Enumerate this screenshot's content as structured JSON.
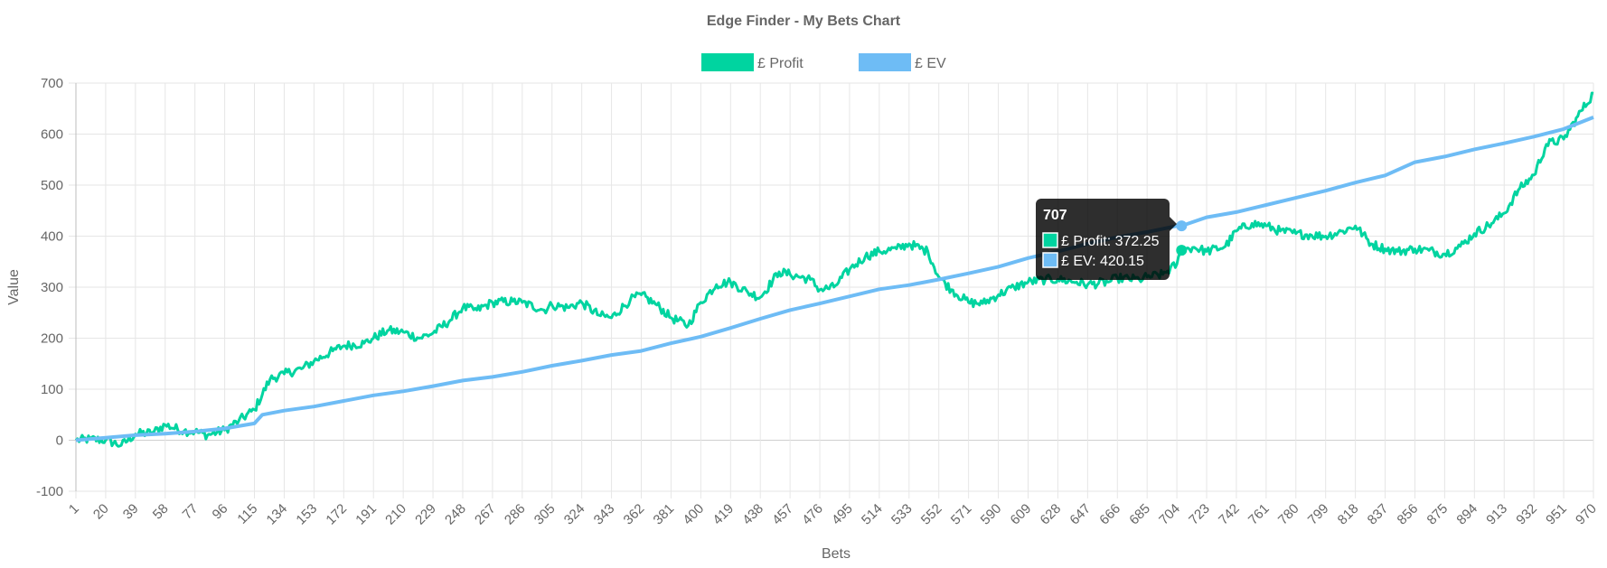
{
  "chart_data": {
    "type": "line",
    "title": "Edge Finder - My Bets Chart",
    "xlabel": "Bets",
    "ylabel": "Value",
    "ylim": [
      -100,
      700
    ],
    "yticks": [
      700,
      600,
      500,
      400,
      300,
      200,
      100,
      0,
      -100
    ],
    "xlim": [
      1,
      970
    ],
    "xticks": [
      1,
      20,
      39,
      58,
      77,
      96,
      115,
      134,
      153,
      172,
      191,
      210,
      229,
      248,
      267,
      286,
      305,
      324,
      343,
      362,
      381,
      400,
      419,
      438,
      457,
      476,
      495,
      514,
      533,
      552,
      571,
      590,
      609,
      628,
      647,
      666,
      685,
      704,
      723,
      742,
      761,
      780,
      799,
      818,
      837,
      856,
      875,
      894,
      913,
      932,
      951,
      970
    ],
    "grid": true,
    "legend": "top-center",
    "series": [
      {
        "name": "£ Profit",
        "color": "#00d4a0",
        "points": [
          [
            1,
            0
          ],
          [
            10,
            2
          ],
          [
            20,
            0
          ],
          [
            30,
            -10
          ],
          [
            39,
            12
          ],
          [
            50,
            15
          ],
          [
            58,
            30
          ],
          [
            70,
            18
          ],
          [
            77,
            17
          ],
          [
            85,
            10
          ],
          [
            96,
            20
          ],
          [
            105,
            38
          ],
          [
            115,
            60
          ],
          [
            125,
            120
          ],
          [
            134,
            130
          ],
          [
            145,
            140
          ],
          [
            153,
            155
          ],
          [
            165,
            175
          ],
          [
            172,
            185
          ],
          [
            185,
            190
          ],
          [
            191,
            200
          ],
          [
            200,
            215
          ],
          [
            210,
            212
          ],
          [
            220,
            200
          ],
          [
            229,
            210
          ],
          [
            240,
            235
          ],
          [
            248,
            260
          ],
          [
            257,
            255
          ],
          [
            267,
            270
          ],
          [
            280,
            272
          ],
          [
            286,
            270
          ],
          [
            300,
            255
          ],
          [
            305,
            265
          ],
          [
            315,
            260
          ],
          [
            324,
            270
          ],
          [
            335,
            245
          ],
          [
            343,
            240
          ],
          [
            355,
            275
          ],
          [
            362,
            285
          ],
          [
            372,
            265
          ],
          [
            381,
            240
          ],
          [
            392,
            225
          ],
          [
            400,
            270
          ],
          [
            410,
            305
          ],
          [
            419,
            310
          ],
          [
            430,
            290
          ],
          [
            438,
            280
          ],
          [
            450,
            330
          ],
          [
            457,
            325
          ],
          [
            470,
            315
          ],
          [
            476,
            295
          ],
          [
            485,
            300
          ],
          [
            495,
            335
          ],
          [
            505,
            360
          ],
          [
            514,
            370
          ],
          [
            525,
            375
          ],
          [
            533,
            385
          ],
          [
            545,
            370
          ],
          [
            552,
            320
          ],
          [
            560,
            295
          ],
          [
            571,
            270
          ],
          [
            580,
            268
          ],
          [
            590,
            285
          ],
          [
            600,
            300
          ],
          [
            609,
            310
          ],
          [
            620,
            315
          ],
          [
            628,
            315
          ],
          [
            640,
            310
          ],
          [
            647,
            305
          ],
          [
            660,
            310
          ],
          [
            666,
            318
          ],
          [
            680,
            315
          ],
          [
            685,
            320
          ],
          [
            695,
            325
          ],
          [
            704,
            345
          ],
          [
            707,
            372.25
          ],
          [
            715,
            378
          ],
          [
            723,
            370
          ],
          [
            735,
            380
          ],
          [
            742,
            410
          ],
          [
            752,
            425
          ],
          [
            761,
            420
          ],
          [
            770,
            410
          ],
          [
            780,
            405
          ],
          [
            790,
            402
          ],
          [
            799,
            400
          ],
          [
            810,
            410
          ],
          [
            818,
            420
          ],
          [
            828,
            385
          ],
          [
            837,
            375
          ],
          [
            845,
            370
          ],
          [
            856,
            375
          ],
          [
            865,
            372
          ],
          [
            875,
            365
          ],
          [
            885,
            380
          ],
          [
            894,
            405
          ],
          [
            905,
            425
          ],
          [
            913,
            445
          ],
          [
            922,
            490
          ],
          [
            932,
            520
          ],
          [
            940,
            580
          ],
          [
            951,
            590
          ],
          [
            960,
            635
          ],
          [
            970,
            680
          ]
        ]
      },
      {
        "name": "£ EV",
        "color": "#6ebcf5",
        "points": [
          [
            1,
            0
          ],
          [
            20,
            5
          ],
          [
            39,
            10
          ],
          [
            58,
            13
          ],
          [
            77,
            17
          ],
          [
            96,
            23
          ],
          [
            115,
            33
          ],
          [
            120,
            50
          ],
          [
            134,
            58
          ],
          [
            153,
            66
          ],
          [
            172,
            77
          ],
          [
            191,
            88
          ],
          [
            210,
            96
          ],
          [
            229,
            106
          ],
          [
            248,
            117
          ],
          [
            267,
            124
          ],
          [
            286,
            134
          ],
          [
            305,
            146
          ],
          [
            324,
            156
          ],
          [
            343,
            167
          ],
          [
            362,
            175
          ],
          [
            381,
            190
          ],
          [
            400,
            203
          ],
          [
            419,
            220
          ],
          [
            438,
            238
          ],
          [
            457,
            255
          ],
          [
            476,
            268
          ],
          [
            495,
            282
          ],
          [
            514,
            296
          ],
          [
            533,
            304
          ],
          [
            552,
            315
          ],
          [
            571,
            327
          ],
          [
            590,
            340
          ],
          [
            609,
            357
          ],
          [
            628,
            370
          ],
          [
            647,
            385
          ],
          [
            666,
            398
          ],
          [
            685,
            408
          ],
          [
            704,
            420
          ],
          [
            707,
            420.15
          ],
          [
            723,
            437
          ],
          [
            742,
            447
          ],
          [
            761,
            461
          ],
          [
            780,
            475
          ],
          [
            799,
            489
          ],
          [
            818,
            505
          ],
          [
            837,
            519
          ],
          [
            856,
            545
          ],
          [
            875,
            556
          ],
          [
            894,
            570
          ],
          [
            913,
            582
          ],
          [
            932,
            595
          ],
          [
            951,
            610
          ],
          [
            970,
            633
          ]
        ]
      }
    ],
    "tooltip": {
      "title": "707",
      "x": 707,
      "lines": [
        {
          "label": "£ Profit: 372.25",
          "series": "£ Profit",
          "value": 372.25
        },
        {
          "label": "£ EV: 420.15",
          "series": "£ EV",
          "value": 420.15
        }
      ]
    }
  }
}
